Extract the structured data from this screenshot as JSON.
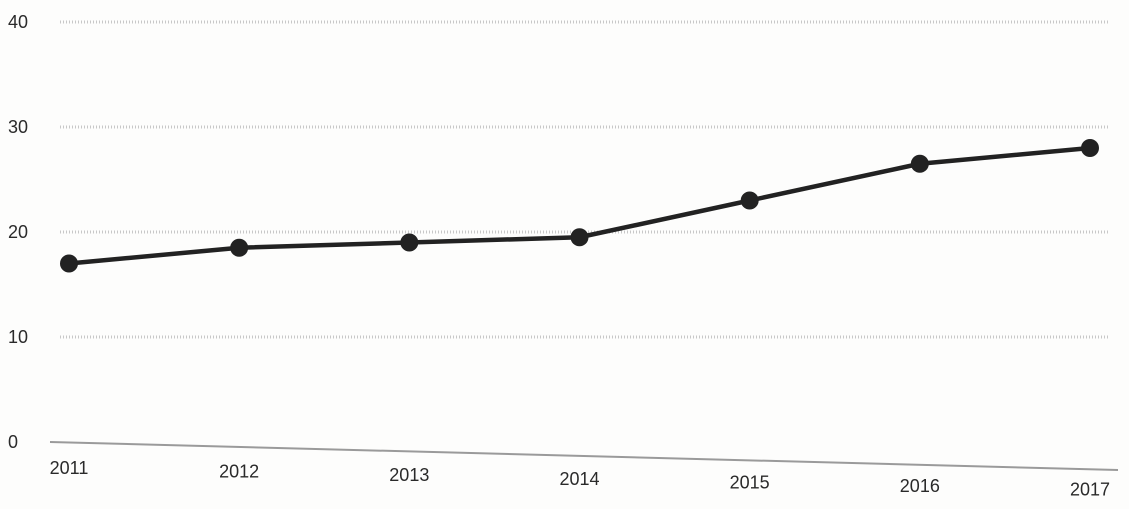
{
  "chart_data": {
    "type": "line",
    "x": [
      "2011",
      "2012",
      "2013",
      "2014",
      "2015",
      "2016",
      "2017"
    ],
    "series": [
      {
        "values": [
          17,
          18.5,
          19,
          19.5,
          23,
          26.5,
          28
        ]
      }
    ],
    "y_ticks": [
      "0",
      "10",
      "20",
      "30",
      "40"
    ],
    "ylim": [
      0,
      40
    ],
    "grid": true,
    "legend": "none",
    "title": "",
    "xlabel": "",
    "ylabel": "",
    "colors": {
      "line": "#222222",
      "marker": "#222222",
      "grid": "#c8c8c8",
      "axis": "#9a9a9a",
      "text": "#2a2a2a"
    }
  }
}
